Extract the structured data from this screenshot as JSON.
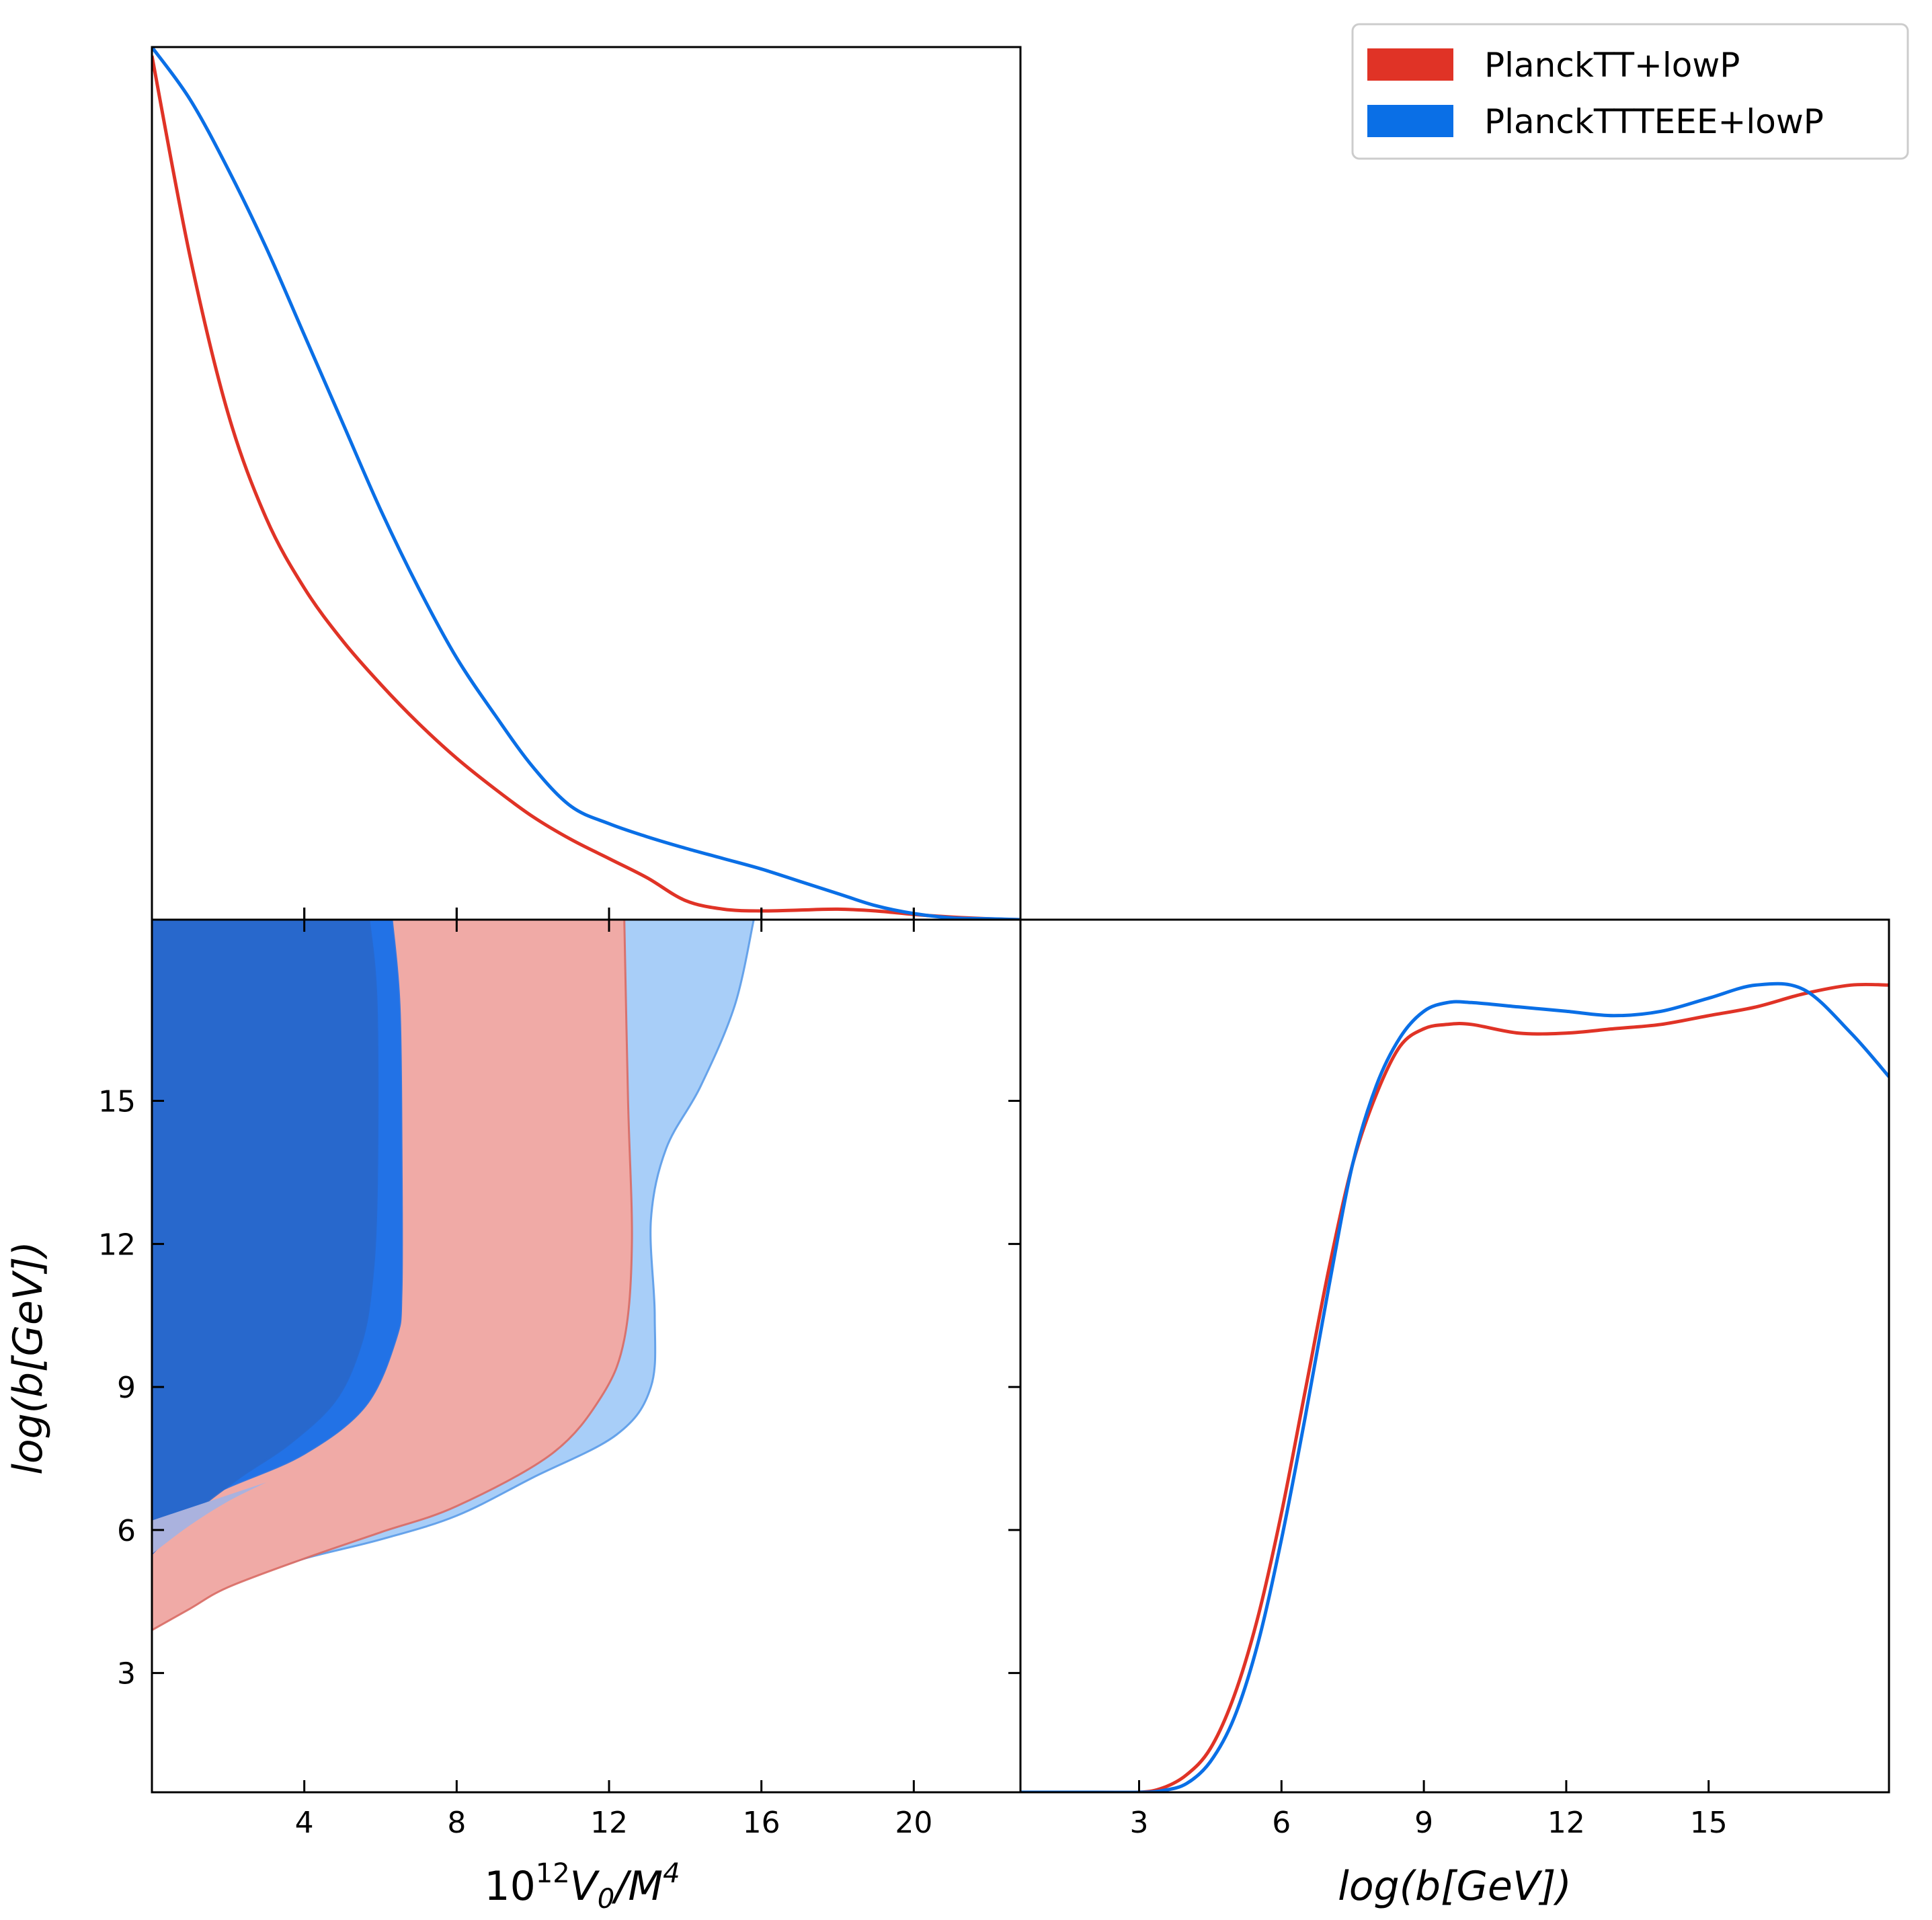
{
  "chart_data": [
    {
      "panel": "top-left",
      "type": "line",
      "title": "",
      "xlabel": "",
      "ylabel": "",
      "xlim": [
        0,
        22.8
      ],
      "ylim": [
        0,
        1.0
      ],
      "x_ticks": [
        4,
        8,
        12,
        16,
        20
      ],
      "series": [
        {
          "name": "PlanckTT+lowP",
          "color": "#e03326",
          "x": [
            0,
            1,
            2,
            3,
            4,
            5,
            6,
            7,
            8,
            9,
            10,
            11,
            12,
            13,
            14,
            15,
            16,
            17,
            18,
            19,
            20,
            21,
            22,
            22.8
          ],
          "y": [
            0.99,
            0.76,
            0.58,
            0.46,
            0.38,
            0.32,
            0.27,
            0.225,
            0.185,
            0.15,
            0.118,
            0.092,
            0.07,
            0.048,
            0.022,
            0.012,
            0.01,
            0.011,
            0.012,
            0.01,
            0.006,
            0.003,
            0.001,
            0.0
          ]
        },
        {
          "name": "PlanckTTTEEE+lowP",
          "color": "#0a6fe6",
          "x": [
            0,
            1,
            2,
            3,
            4,
            5,
            6,
            7,
            8,
            9,
            10,
            11,
            12,
            13,
            14,
            15,
            16,
            17,
            18,
            19,
            20,
            21,
            22,
            22.8
          ],
          "y": [
            1.0,
            0.94,
            0.86,
            0.77,
            0.67,
            0.57,
            0.47,
            0.38,
            0.3,
            0.235,
            0.175,
            0.13,
            0.11,
            0.095,
            0.082,
            0.07,
            0.058,
            0.044,
            0.03,
            0.016,
            0.007,
            0.002,
            0.001,
            0.0
          ]
        }
      ]
    },
    {
      "panel": "bottom-left",
      "type": "area",
      "title": "",
      "xlabel": "10^12 V0 / M^4",
      "ylabel": "log(b[GeV])",
      "xlim": [
        0,
        22.8
      ],
      "ylim": [
        0.5,
        18.8
      ],
      "x_ticks": [
        4,
        8,
        12,
        16,
        20
      ],
      "y_ticks": [
        3,
        6,
        9,
        12,
        15
      ],
      "contours": [
        {
          "name": "PlanckTTTEEE+lowP 95%",
          "color": "#a8cef8",
          "outline": "#5a9be8",
          "left_edge": [
            [
              0,
              4.4
            ],
            [
              0,
              18.8
            ]
          ],
          "right_edge": [
            [
              15.8,
              18.8
            ],
            [
              15.3,
              17
            ],
            [
              14.4,
              15.3
            ],
            [
              13.5,
              14
            ],
            [
              13.1,
              12.5
            ],
            [
              13.2,
              10.5
            ],
            [
              13.1,
              9
            ],
            [
              12.2,
              8
            ],
            [
              10,
              7.1
            ],
            [
              8,
              6.3
            ],
            [
              6,
              5.8
            ],
            [
              4,
              5.4
            ],
            [
              2,
              4.9
            ],
            [
              0,
              4.4
            ]
          ]
        },
        {
          "name": "PlanckTT+lowP 95%",
          "color": "#f0aaa6",
          "outline": "#d86a64",
          "left_edge": [
            [
              0,
              3.9
            ],
            [
              0,
              18.8
            ]
          ],
          "right_edge": [
            [
              12.4,
              18.8
            ],
            [
              12.5,
              15
            ],
            [
              12.6,
              12
            ],
            [
              12.4,
              10
            ],
            [
              11.8,
              8.8
            ],
            [
              10.5,
              7.6
            ],
            [
              8,
              6.5
            ],
            [
              6,
              5.95
            ],
            [
              4,
              5.4
            ],
            [
              2,
              4.8
            ],
            [
              1,
              4.35
            ],
            [
              0,
              3.9
            ]
          ]
        },
        {
          "name": "PlanckTTTEEE+lowP 68%",
          "color": "#2272e6",
          "outline": "#2272e6",
          "left_edge": [
            [
              0,
              6.2
            ],
            [
              0,
              18.8
            ]
          ],
          "right_edge": [
            [
              6.3,
              18.8
            ],
            [
              6.5,
              17
            ],
            [
              6.55,
              14
            ],
            [
              6.55,
              11
            ],
            [
              6.4,
              10
            ],
            [
              5.6,
              8.6
            ],
            [
              4,
              7.6
            ],
            [
              2,
              6.9
            ],
            [
              0,
              6.2
            ]
          ]
        },
        {
          "name": "PlanckTT+lowP 68%",
          "color": "#2868cc",
          "outline": "#2868cc",
          "left_edge": [
            [
              0,
              5.5
            ],
            [
              0,
              18.8
            ]
          ],
          "right_edge": [
            [
              5.7,
              18.8
            ],
            [
              5.9,
              17
            ],
            [
              5.9,
              13
            ],
            [
              5.75,
              11
            ],
            [
              5.45,
              9.8
            ],
            [
              4.8,
              8.7
            ],
            [
              3.6,
              7.8
            ],
            [
              2.3,
              7.1
            ],
            [
              1,
              6.3
            ],
            [
              0,
              5.5
            ]
          ]
        },
        {
          "name": "overlap-lower-band",
          "color": "#aab2de",
          "outline": "none",
          "left_edge": [
            [
              0,
              5.5
            ],
            [
              0,
              6.2
            ]
          ],
          "right_edge": [
            [
              3.0,
              7.0
            ],
            [
              2,
              6.6
            ],
            [
              1,
              6.1
            ],
            [
              0,
              5.5
            ]
          ]
        }
      ]
    },
    {
      "panel": "bottom-right",
      "type": "line",
      "title": "",
      "xlabel": "log(b[GeV])",
      "ylabel": "",
      "xlim": [
        0.5,
        18.8
      ],
      "ylim": [
        0,
        1.0
      ],
      "x_ticks": [
        3,
        6,
        9,
        12,
        15
      ],
      "series": [
        {
          "name": "PlanckTT+lowP",
          "color": "#e03326",
          "x": [
            0.5,
            2,
            3,
            3.5,
            4,
            4.5,
            5,
            5.5,
            6,
            6.5,
            7,
            7.5,
            8,
            8.5,
            9,
            9.5,
            10,
            11,
            12,
            13,
            14,
            15,
            16,
            17,
            18,
            18.8
          ],
          "y": [
            0.0,
            0.0,
            0.0,
            0.005,
            0.02,
            0.05,
            0.11,
            0.2,
            0.32,
            0.46,
            0.6,
            0.72,
            0.8,
            0.855,
            0.875,
            0.88,
            0.88,
            0.87,
            0.87,
            0.875,
            0.88,
            0.89,
            0.9,
            0.915,
            0.925,
            0.925
          ]
        },
        {
          "name": "PlanckTTTEEE+lowP",
          "color": "#0a6fe6",
          "x": [
            0.5,
            2,
            3,
            3.5,
            4,
            4.5,
            5,
            5.5,
            6,
            6.5,
            7,
            7.5,
            8,
            8.5,
            9,
            9.5,
            10,
            11,
            12,
            13,
            14,
            15,
            16,
            17,
            18,
            18.8
          ],
          "y": [
            0.0,
            0.0,
            0.0,
            0.002,
            0.01,
            0.035,
            0.085,
            0.17,
            0.29,
            0.43,
            0.58,
            0.72,
            0.81,
            0.865,
            0.895,
            0.905,
            0.905,
            0.9,
            0.895,
            0.89,
            0.895,
            0.91,
            0.925,
            0.92,
            0.87,
            0.82
          ]
        }
      ]
    }
  ],
  "legend": {
    "location": "top-right",
    "entries": [
      {
        "label": "PlanckTT+lowP",
        "color": "#e03326"
      },
      {
        "label": "PlanckTTTEEE+lowP",
        "color": "#0a6fe6"
      }
    ]
  },
  "axis_text": {
    "x_label_left_base": "10",
    "x_label_left_exp": "12",
    "x_label_left_mid": "V",
    "x_label_left_sub": "0",
    "x_label_left_slash": "/M",
    "x_label_left_exp2": "4",
    "y_label_left": "log(b[GeV])",
    "x_label_right": "log(b[GeV])"
  }
}
